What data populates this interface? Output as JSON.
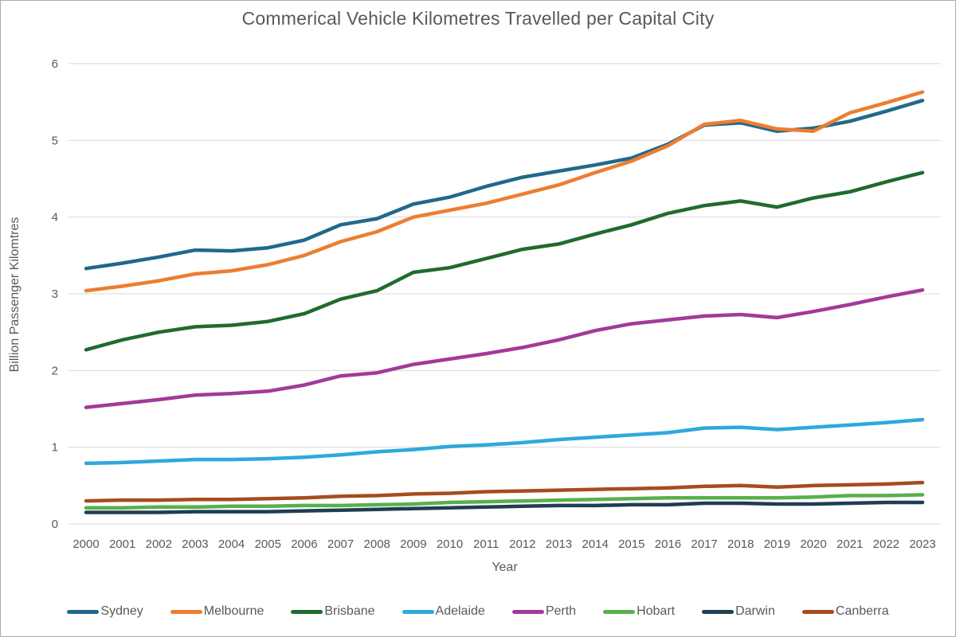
{
  "chart_data": {
    "type": "line",
    "title": "Commerical Vehicle Kilometres Travelled per Capital City",
    "xlabel": "Year",
    "ylabel": "Billion Passenger Kilomtres",
    "ylim": [
      0,
      6
    ],
    "yticks": [
      0,
      1,
      2,
      3,
      4,
      5,
      6
    ],
    "grid": true,
    "legend_position": "bottom",
    "axis_text_color": "#595959",
    "gridline_color": "#d9d9d9",
    "categories": [
      2000,
      2001,
      2002,
      2003,
      2004,
      2005,
      2006,
      2007,
      2008,
      2009,
      2010,
      2011,
      2012,
      2013,
      2014,
      2015,
      2016,
      2017,
      2018,
      2019,
      2020,
      2021,
      2022,
      2023
    ],
    "series": [
      {
        "name": "Sydney",
        "color": "#20698A",
        "values": [
          3.33,
          3.4,
          3.48,
          3.57,
          3.56,
          3.6,
          3.7,
          3.9,
          3.98,
          4.17,
          4.26,
          4.4,
          4.52,
          4.6,
          4.68,
          4.77,
          4.95,
          5.2,
          5.23,
          5.12,
          5.16,
          5.25,
          5.38,
          5.52
        ]
      },
      {
        "name": "Melbourne",
        "color": "#ED7D31",
        "values": [
          3.04,
          3.1,
          3.17,
          3.26,
          3.3,
          3.38,
          3.5,
          3.68,
          3.81,
          4.0,
          4.09,
          4.18,
          4.3,
          4.42,
          4.58,
          4.73,
          4.93,
          5.21,
          5.26,
          5.15,
          5.12,
          5.36,
          5.49,
          5.63
        ]
      },
      {
        "name": "Brisbane",
        "color": "#206B2F",
        "values": [
          2.27,
          2.4,
          2.5,
          2.57,
          2.59,
          2.64,
          2.74,
          2.93,
          3.04,
          3.28,
          3.34,
          3.46,
          3.58,
          3.65,
          3.78,
          3.9,
          4.05,
          4.15,
          4.21,
          4.13,
          4.25,
          4.33,
          4.46,
          4.58
        ]
      },
      {
        "name": "Adelaide",
        "color": "#2FA8DC",
        "values": [
          0.79,
          0.8,
          0.82,
          0.84,
          0.84,
          0.85,
          0.87,
          0.9,
          0.94,
          0.97,
          1.01,
          1.03,
          1.06,
          1.1,
          1.13,
          1.16,
          1.19,
          1.25,
          1.26,
          1.23,
          1.26,
          1.29,
          1.32,
          1.36
        ]
      },
      {
        "name": "Perth",
        "color": "#A23A97",
        "values": [
          1.52,
          1.57,
          1.62,
          1.68,
          1.7,
          1.73,
          1.81,
          1.93,
          1.97,
          2.08,
          2.15,
          2.22,
          2.3,
          2.4,
          2.52,
          2.61,
          2.66,
          2.71,
          2.73,
          2.69,
          2.77,
          2.86,
          2.96,
          3.05
        ]
      },
      {
        "name": "Hobart",
        "color": "#58B04C",
        "values": [
          0.21,
          0.21,
          0.22,
          0.22,
          0.23,
          0.23,
          0.24,
          0.24,
          0.25,
          0.26,
          0.28,
          0.29,
          0.3,
          0.31,
          0.32,
          0.33,
          0.34,
          0.34,
          0.34,
          0.34,
          0.35,
          0.37,
          0.37,
          0.38
        ]
      },
      {
        "name": "Darwin",
        "color": "#1E3E52",
        "values": [
          0.15,
          0.15,
          0.15,
          0.16,
          0.16,
          0.16,
          0.17,
          0.18,
          0.19,
          0.2,
          0.21,
          0.22,
          0.23,
          0.24,
          0.24,
          0.25,
          0.25,
          0.27,
          0.27,
          0.26,
          0.26,
          0.27,
          0.28,
          0.28
        ]
      },
      {
        "name": "Canberra",
        "color": "#A64C1F",
        "values": [
          0.3,
          0.31,
          0.31,
          0.32,
          0.32,
          0.33,
          0.34,
          0.36,
          0.37,
          0.39,
          0.4,
          0.42,
          0.43,
          0.44,
          0.45,
          0.46,
          0.47,
          0.49,
          0.5,
          0.48,
          0.5,
          0.51,
          0.52,
          0.54
        ]
      }
    ]
  }
}
